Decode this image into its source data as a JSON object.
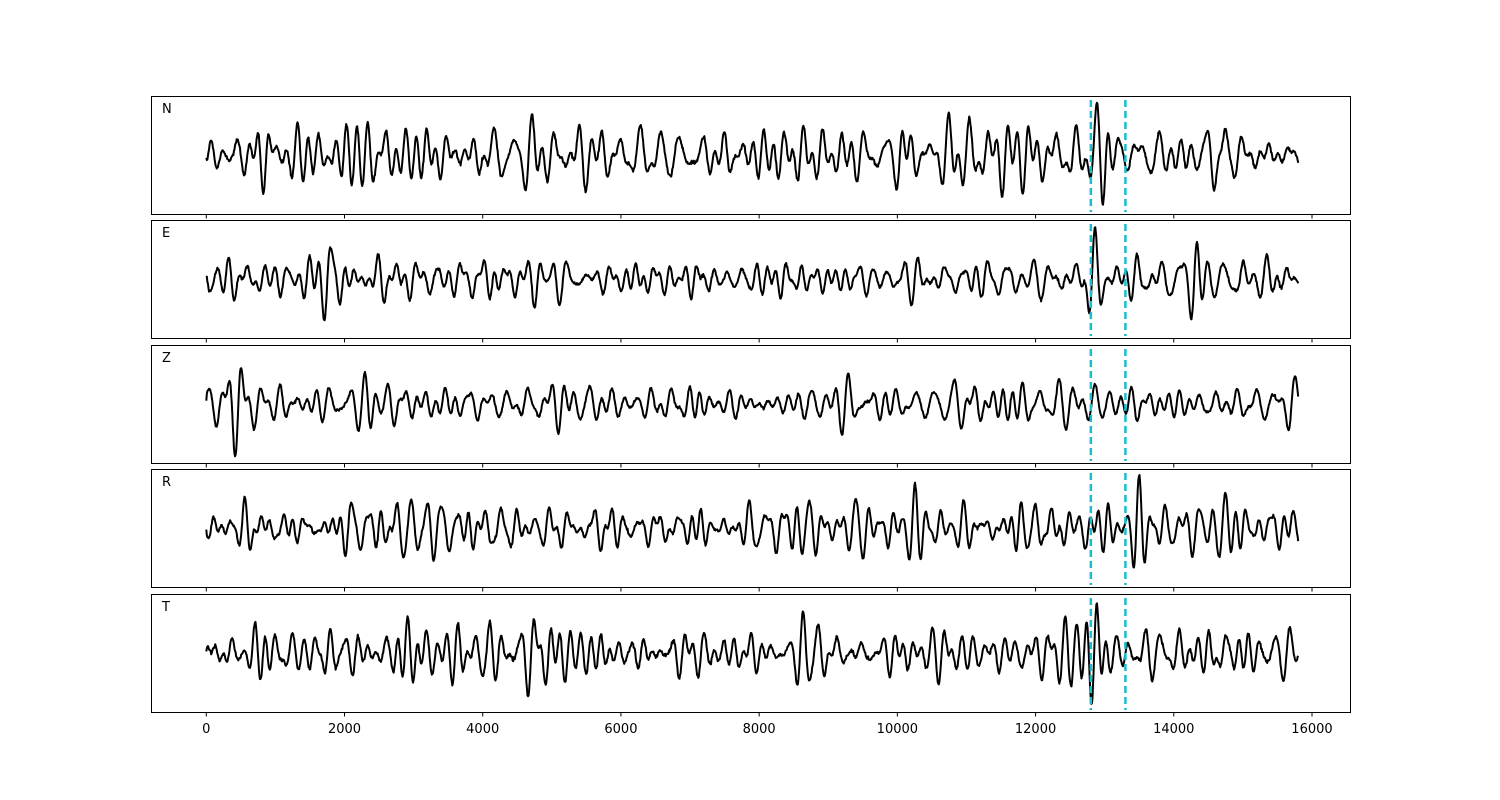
{
  "chart_data": {
    "type": "line",
    "title": "",
    "xlabel": "",
    "ylabel": "",
    "xlim": [
      -800,
      16550
    ],
    "xticks": [
      0,
      2000,
      4000,
      6000,
      8000,
      10000,
      12000,
      14000,
      16000
    ],
    "xtick_labels": [
      "0",
      "2000",
      "4000",
      "6000",
      "8000",
      "10000",
      "12000",
      "14000",
      "16000"
    ],
    "grid": false,
    "legend": "none",
    "trace_color": "#000000",
    "marker_color": "#17becf",
    "sample_count": 15801,
    "markers": [
      12800,
      13300
    ],
    "panels": [
      {
        "name": "N",
        "seed": 11,
        "bursts": [
          [
            850,
            0.9
          ],
          [
            10050,
            0.9
          ],
          [
            13000,
            1.0
          ],
          [
            14700,
            1.3
          ],
          [
            14620,
            1.0
          ]
        ]
      },
      {
        "name": "E",
        "seed": 23,
        "bursts": [
          [
            1750,
            1.2
          ],
          [
            4800,
            0.9
          ],
          [
            12830,
            1.5
          ],
          [
            14300,
            1.1
          ]
        ]
      },
      {
        "name": "Z",
        "seed": 37,
        "bursts": [
          [
            450,
            1.3
          ],
          [
            2400,
            1.2
          ],
          [
            7100,
            0.9
          ],
          [
            15700,
            0.9
          ]
        ]
      },
      {
        "name": "R",
        "seed": 41,
        "bursts": [
          [
            5200,
            1.0
          ],
          [
            10200,
            0.9
          ],
          [
            12870,
            1.5
          ],
          [
            13450,
            1.1
          ],
          [
            14700,
            1.0
          ]
        ]
      },
      {
        "name": "T",
        "seed": 53,
        "bursts": [
          [
            1750,
            1.1
          ],
          [
            4700,
            1.2
          ],
          [
            8600,
            0.9
          ],
          [
            12850,
            1.0
          ],
          [
            14700,
            1.3
          ]
        ]
      }
    ]
  }
}
